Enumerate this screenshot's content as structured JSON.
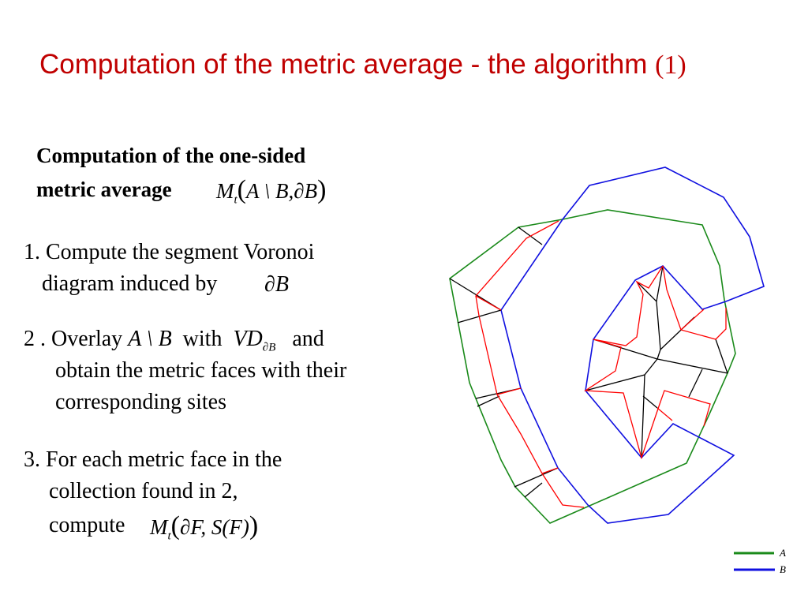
{
  "title": {
    "text": "Computation of the metric average - the algorithm ",
    "number": "(1)"
  },
  "heading": {
    "line1": "Computation  of  the  one-sided",
    "line2": "metric average",
    "formula": {
      "M": "M",
      "sub": "t",
      "open": "(",
      "args": "A \\ B,∂B",
      "close": ")"
    }
  },
  "steps": [
    {
      "line1": "1. Compute the segment Voronoi",
      "line2": "diagram induced by",
      "math": "∂B"
    },
    {
      "line1_a": "2 . Overlay",
      "math1": "A \\ B",
      "line1_b": "with",
      "math2": "VD",
      "math2_sub": "∂B",
      "line1_c": "and",
      "line2": "obtain the metric faces with their",
      "line3": "corresponding sites"
    },
    {
      "line1": "3. For each metric face in the",
      "line2": "collection found in 2,",
      "line3": "compute",
      "formula": {
        "M": "M",
        "sub": "t",
        "args": "∂F, S(F)"
      }
    }
  ],
  "legend": [
    {
      "label": "A",
      "color": "#1a8a1a"
    },
    {
      "label": "B",
      "color": "#1010e0"
    }
  ],
  "colors": {
    "title": "#c00000",
    "voronoi": "#000000",
    "metric_faces": "#ff0000"
  }
}
